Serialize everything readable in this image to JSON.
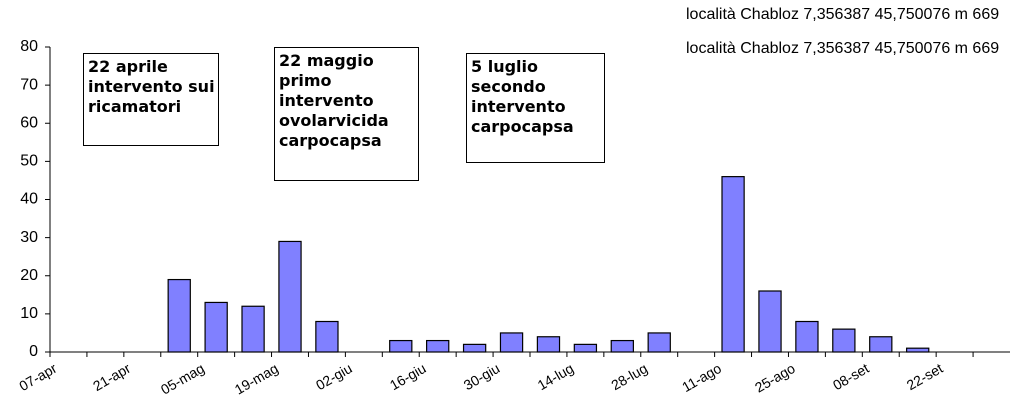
{
  "chart_data": {
    "type": "bar",
    "categories": [
      "07-apr",
      null,
      "21-apr",
      null,
      "05-mag",
      null,
      "19-mag",
      null,
      "02-giu",
      null,
      "16-giu",
      null,
      "30-giu",
      null,
      "14-lug",
      null,
      "28-lug",
      null,
      "11-ago",
      null,
      "25-ago",
      null,
      "08-set",
      null,
      "22-set",
      null
    ],
    "series": [
      {
        "name": "località Chabloz 7,356387 45,750076 m 669",
        "color": "#8080ff",
        "values": [
          null,
          null,
          null,
          19,
          13,
          12,
          29,
          8,
          null,
          3,
          3,
          2,
          5,
          4,
          2,
          3,
          5,
          null,
          46,
          16,
          8,
          6,
          4,
          1,
          null,
          null
        ]
      },
      {
        "name": "località Chabloz 7,356387 45,750076 m 669",
        "color": "#8080ff",
        "values": [
          null,
          null,
          null,
          null,
          null,
          null,
          null,
          null,
          null,
          null,
          null,
          null,
          null,
          null,
          null,
          null,
          null,
          null,
          null,
          null,
          null,
          null,
          null,
          null,
          null,
          null
        ]
      }
    ],
    "ylim": [
      0,
      80
    ],
    "yticks": [
      0,
      10,
      20,
      30,
      40,
      50,
      60,
      70,
      80
    ],
    "grid": false,
    "legend": "top-right",
    "annotations": [
      {
        "lines": [
          "22 aprile",
          "intervento sui",
          "ricamatori"
        ]
      },
      {
        "lines": [
          "22 maggio",
          "primo",
          "intervento",
          "ovolarvicida",
          "carpocapsa"
        ]
      },
      {
        "lines": [
          "5 luglio",
          "secondo",
          "intervento",
          "carpocapsa"
        ]
      }
    ]
  }
}
